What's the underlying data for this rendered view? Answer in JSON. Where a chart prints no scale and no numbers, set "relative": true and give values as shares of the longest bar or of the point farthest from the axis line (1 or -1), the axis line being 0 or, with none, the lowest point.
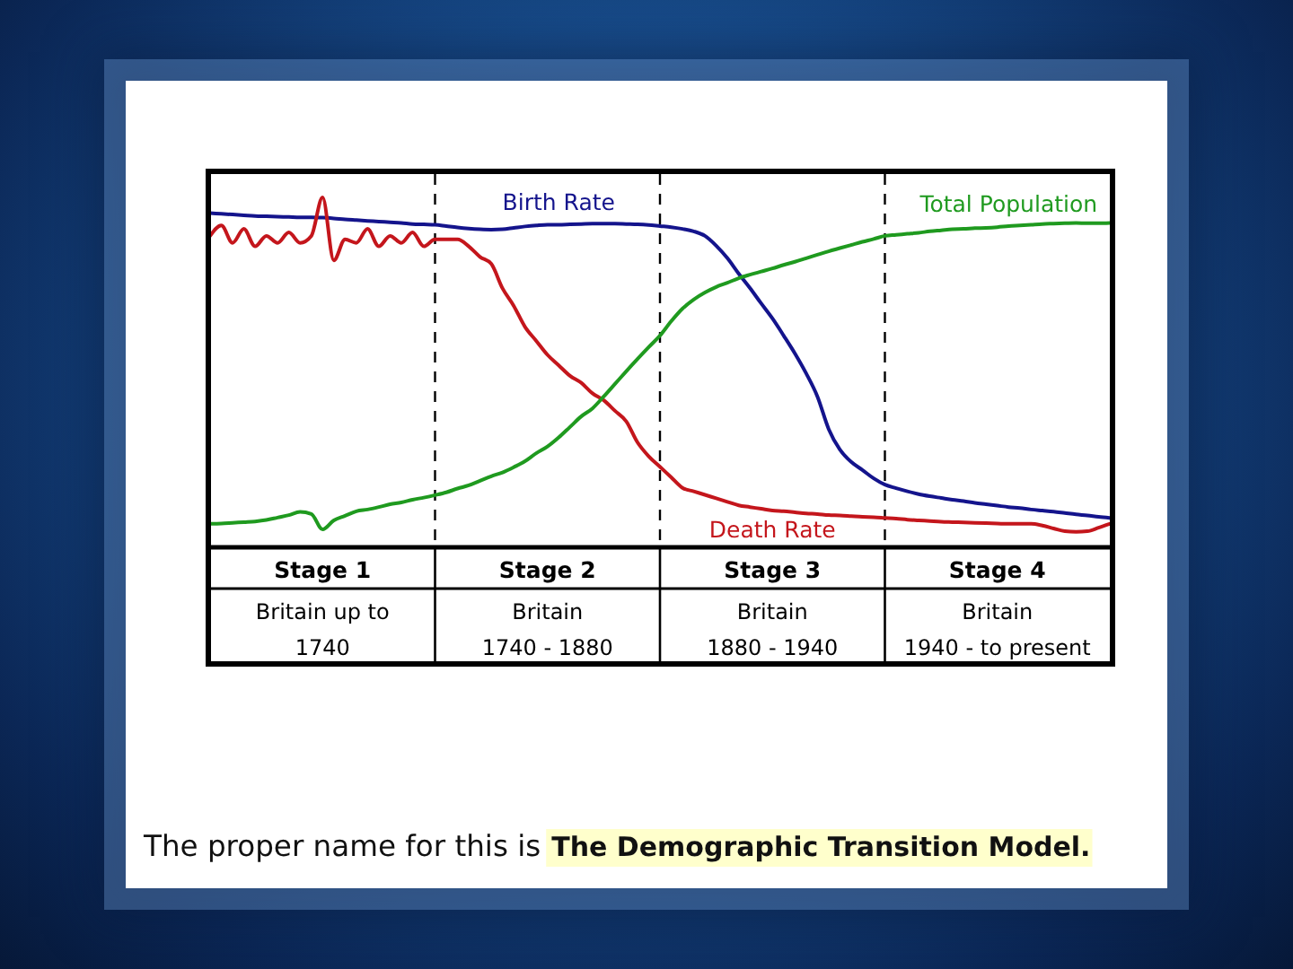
{
  "chart_data": {
    "type": "line",
    "relative": true,
    "grid": "x",
    "categories": [
      null,
      null,
      null,
      null,
      null,
      null,
      null,
      null,
      null,
      null,
      null,
      null,
      null,
      null,
      null,
      null,
      null,
      null,
      null,
      null,
      null,
      null,
      null,
      null,
      null,
      null,
      null,
      null,
      null,
      null,
      null,
      null,
      null,
      null,
      null,
      null,
      null,
      null,
      null,
      null,
      null,
      null,
      null,
      null,
      null,
      null,
      null,
      null,
      null,
      null,
      null,
      null,
      null,
      null,
      null,
      null,
      null,
      null,
      null,
      null,
      null,
      null,
      null,
      null,
      null,
      null,
      null,
      null,
      null,
      null,
      null,
      null,
      null,
      null,
      null,
      null,
      null,
      null,
      null,
      null,
      null
    ],
    "series": [
      {
        "name": "Birth Rate",
        "color": "#14148c",
        "values": [
          0.955,
          0.953,
          0.951,
          0.949,
          0.947,
          0.946,
          0.945,
          0.944,
          0.943,
          0.943,
          0.942,
          0.94,
          0.937,
          0.935,
          0.933,
          0.931,
          0.929,
          0.927,
          0.924,
          0.923,
          0.922,
          0.918,
          0.914,
          0.911,
          0.909,
          0.908,
          0.909,
          0.913,
          0.917,
          0.92,
          0.922,
          0.922,
          0.923,
          0.924,
          0.925,
          0.925,
          0.925,
          0.924,
          0.923,
          0.921,
          0.918,
          0.915,
          0.91,
          0.903,
          0.89,
          0.862,
          0.826,
          0.782,
          0.741,
          0.697,
          0.654,
          0.605,
          0.554,
          0.497,
          0.431,
          0.338,
          0.279,
          0.244,
          0.221,
          0.197,
          0.179,
          0.169,
          0.16,
          0.152,
          0.146,
          0.141,
          0.136,
          0.132,
          0.127,
          0.123,
          0.119,
          0.115,
          0.112,
          0.108,
          0.105,
          0.102,
          0.098,
          0.094,
          0.091,
          0.087,
          0.084
        ]
      },
      {
        "name": "Death Rate",
        "color": "#c4161c",
        "values": [
          0.89,
          0.92,
          0.87,
          0.91,
          0.86,
          0.89,
          0.87,
          0.9,
          0.87,
          0.89,
          1,
          0.82,
          0.88,
          0.87,
          0.91,
          0.86,
          0.89,
          0.87,
          0.9,
          0.86,
          0.88,
          0.88,
          0.88,
          0.86,
          0.83,
          0.81,
          0.74,
          0.69,
          0.63,
          0.59,
          0.55,
          0.52,
          0.49,
          0.47,
          0.44,
          0.42,
          0.39,
          0.36,
          0.3,
          0.26,
          0.23,
          0.2,
          0.17,
          0.16,
          0.15,
          0.14,
          0.13,
          0.12,
          0.115,
          0.11,
          0.105,
          0.103,
          0.1,
          0.097,
          0.095,
          0.092,
          0.091,
          0.089,
          0.087,
          0.086,
          0.084,
          0.082,
          0.079,
          0.077,
          0.075,
          0.073,
          0.072,
          0.071,
          0.07,
          0.069,
          0.068,
          0.067,
          0.067,
          0.067,
          0.062,
          0.054,
          0.046,
          0.044,
          0.046,
          0.056,
          0.067
        ]
      },
      {
        "name": "Total Population",
        "color": "#1f9a1f",
        "values": [
          0.067,
          0.068,
          0.07,
          0.072,
          0.074,
          0.078,
          0.085,
          0.092,
          0.101,
          0.095,
          0.051,
          0.077,
          0.09,
          0.103,
          0.108,
          0.115,
          0.123,
          0.128,
          0.136,
          0.142,
          0.149,
          0.157,
          0.168,
          0.177,
          0.19,
          0.203,
          0.214,
          0.229,
          0.246,
          0.269,
          0.288,
          0.314,
          0.344,
          0.374,
          0.397,
          0.431,
          0.467,
          0.503,
          0.538,
          0.572,
          0.605,
          0.646,
          0.682,
          0.708,
          0.728,
          0.744,
          0.756,
          0.769,
          0.779,
          0.788,
          0.797,
          0.807,
          0.816,
          0.826,
          0.836,
          0.846,
          0.855,
          0.864,
          0.873,
          0.881,
          0.89,
          0.893,
          0.896,
          0.899,
          0.903,
          0.906,
          0.909,
          0.91,
          0.912,
          0.913,
          0.915,
          0.918,
          0.92,
          0.922,
          0.924,
          0.925,
          0.926,
          0.927,
          0.926,
          0.926,
          0.927
        ]
      }
    ],
    "annotations": [
      "Stage 1",
      "Stage 2",
      "Stage 3",
      "Stage 4",
      "Britain up to\n1740",
      "Britain\n1740 - 1880",
      "Britain\n1880 - 1940",
      "Britain\n1940 - to present",
      "The proper name for this is",
      "The Demographic Transition Model."
    ]
  }
}
